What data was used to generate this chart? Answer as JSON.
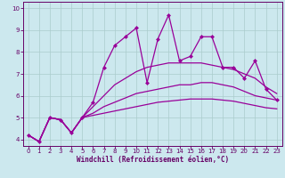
{
  "xlabel": "Windchill (Refroidissement éolien,°C)",
  "bg_color": "#cce8ee",
  "grid_color": "#aacccc",
  "line_color": "#990099",
  "spine_color": "#660066",
  "xlim": [
    -0.5,
    23.5
  ],
  "ylim": [
    3.7,
    10.3
  ],
  "xticks": [
    0,
    1,
    2,
    3,
    4,
    5,
    6,
    7,
    8,
    9,
    10,
    11,
    12,
    13,
    14,
    15,
    16,
    17,
    18,
    19,
    20,
    21,
    22,
    23
  ],
  "yticks": [
    4,
    5,
    6,
    7,
    8,
    9,
    10
  ],
  "series1_x": [
    0,
    1,
    2,
    3,
    4,
    5,
    6,
    7,
    8,
    9,
    10,
    11,
    12,
    13,
    14,
    15,
    16,
    17,
    18,
    19,
    20,
    21,
    22,
    23
  ],
  "series1_y": [
    4.2,
    3.9,
    5.0,
    4.9,
    4.3,
    5.0,
    5.7,
    7.3,
    8.3,
    8.7,
    9.1,
    6.6,
    8.6,
    9.7,
    7.6,
    7.8,
    8.7,
    8.7,
    7.3,
    7.3,
    6.8,
    7.6,
    6.3,
    5.8
  ],
  "series2_x": [
    0,
    1,
    2,
    3,
    4,
    5,
    6,
    7,
    8,
    9,
    10,
    11,
    12,
    13,
    14,
    15,
    16,
    17,
    18,
    19,
    20,
    21,
    22,
    23
  ],
  "series2_y": [
    4.2,
    3.9,
    5.0,
    4.9,
    4.3,
    5.0,
    5.5,
    6.0,
    6.5,
    6.8,
    7.1,
    7.3,
    7.4,
    7.5,
    7.5,
    7.5,
    7.5,
    7.4,
    7.3,
    7.2,
    7.0,
    6.8,
    6.4,
    6.1
  ],
  "series3_x": [
    0,
    1,
    2,
    3,
    4,
    5,
    6,
    7,
    8,
    9,
    10,
    11,
    12,
    13,
    14,
    15,
    16,
    17,
    18,
    19,
    20,
    21,
    22,
    23
  ],
  "series3_y": [
    4.2,
    3.9,
    5.0,
    4.9,
    4.3,
    5.0,
    5.2,
    5.5,
    5.7,
    5.9,
    6.1,
    6.2,
    6.3,
    6.4,
    6.5,
    6.5,
    6.6,
    6.6,
    6.5,
    6.4,
    6.2,
    6.0,
    5.9,
    5.8
  ],
  "series4_x": [
    0,
    1,
    2,
    3,
    4,
    5,
    6,
    7,
    8,
    9,
    10,
    11,
    12,
    13,
    14,
    15,
    16,
    17,
    18,
    19,
    20,
    21,
    22,
    23
  ],
  "series4_y": [
    4.2,
    3.9,
    5.0,
    4.9,
    4.3,
    5.0,
    5.1,
    5.2,
    5.3,
    5.4,
    5.5,
    5.6,
    5.7,
    5.75,
    5.8,
    5.85,
    5.85,
    5.85,
    5.8,
    5.75,
    5.65,
    5.55,
    5.45,
    5.4
  ],
  "markersize": 2.5,
  "linewidth": 0.9,
  "tick_fontsize": 5.0,
  "label_fontsize": 5.5
}
